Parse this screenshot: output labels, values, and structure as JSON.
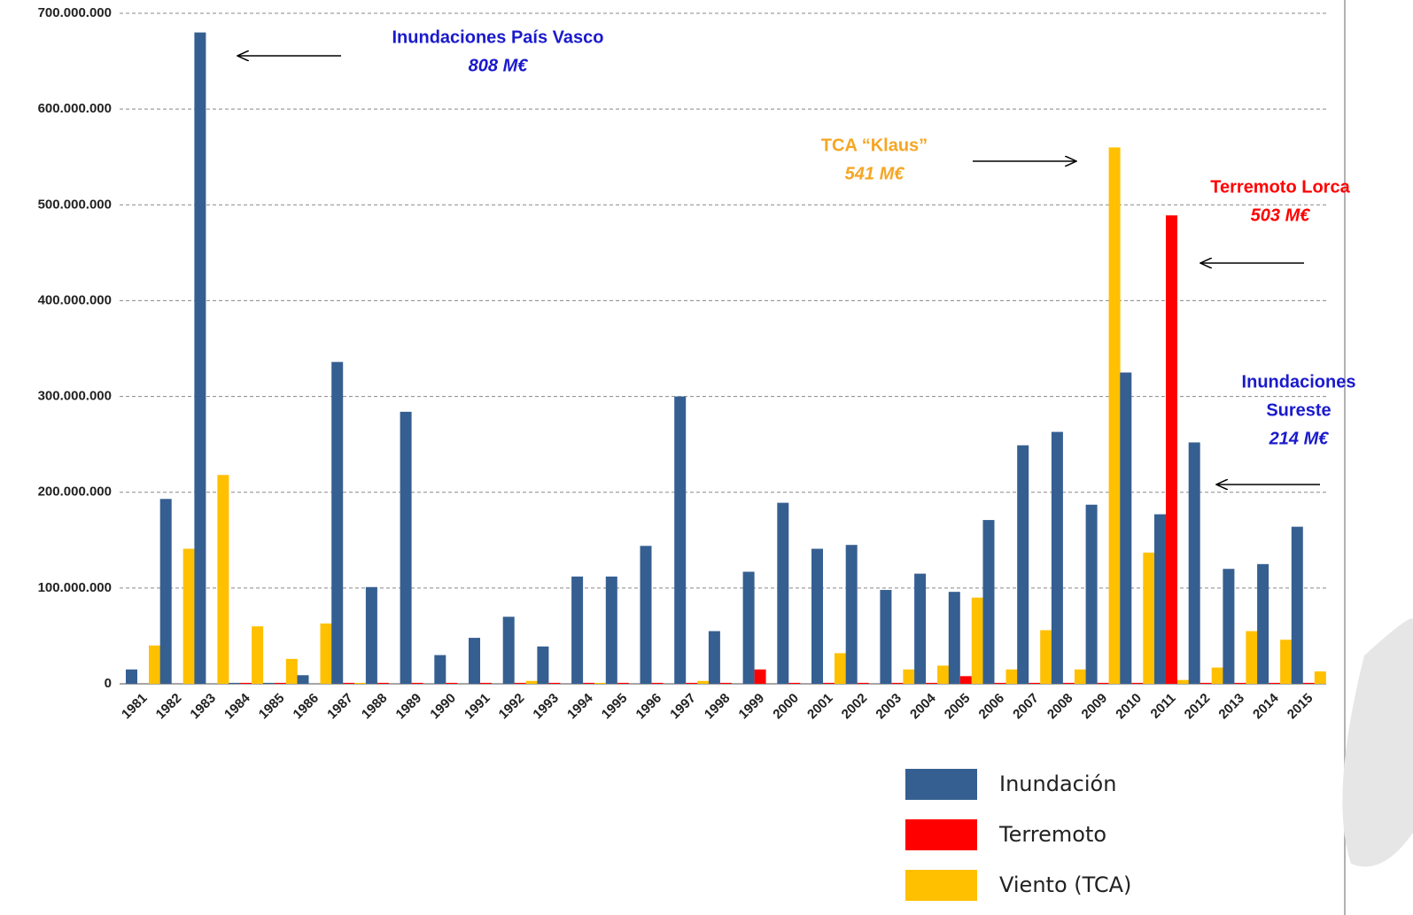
{
  "chart_data": {
    "type": "bar",
    "categories": [
      "1981",
      "1982",
      "1983",
      "1984",
      "1985",
      "1986",
      "1987",
      "1988",
      "1989",
      "1990",
      "1991",
      "1992",
      "1993",
      "1994",
      "1995",
      "1996",
      "1997",
      "1998",
      "1999",
      "2000",
      "2001",
      "2002",
      "2003",
      "2004",
      "2005",
      "2006",
      "2007",
      "2008",
      "2009",
      "2010",
      "2011",
      "2012",
      "2013",
      "2014",
      "2015"
    ],
    "series": [
      {
        "name": "Inundación",
        "color": "#365f91",
        "values": [
          15000000,
          193000000,
          680000000,
          1000000,
          1000000,
          9000000,
          336000000,
          101000000,
          284000000,
          30000000,
          48000000,
          70000000,
          39000000,
          112000000,
          112000000,
          144000000,
          300000000,
          55000000,
          117000000,
          189000000,
          141000000,
          145000000,
          98000000,
          115000000,
          96000000,
          171000000,
          249000000,
          263000000,
          187000000,
          325000000,
          177000000,
          252000000,
          120000000,
          125000000,
          164000000
        ]
      },
      {
        "name": "Terremoto",
        "color": "#ff0000",
        "values": [
          0,
          0,
          0,
          1000000,
          1000000,
          0,
          1000000,
          1000000,
          1000000,
          1000000,
          1000000,
          1000000,
          1000000,
          1000000,
          1000000,
          1000000,
          1000000,
          1000000,
          15000000,
          1000000,
          1000000,
          1000000,
          1000000,
          1000000,
          8000000,
          1000000,
          1000000,
          1000000,
          1000000,
          1000000,
          489000000,
          1000000,
          1000000,
          1000000,
          1000000
        ]
      },
      {
        "name": "Viento (TCA)",
        "color": "#ffc000",
        "values": [
          40000000,
          141000000,
          218000000,
          60000000,
          26000000,
          63000000,
          1000000,
          0,
          0,
          0,
          0,
          3000000,
          0,
          1000000,
          0,
          0,
          3000000,
          0,
          0,
          0,
          32000000,
          0,
          15000000,
          19000000,
          90000000,
          15000000,
          56000000,
          15000000,
          560000000,
          137000000,
          4000000,
          17000000,
          55000000,
          46000000,
          13000000
        ]
      }
    ],
    "ylim": [
      0,
      700000000
    ],
    "yticks": [
      0,
      {
        "value": 100000000,
        "label": "100.000.000"
      },
      {
        "value": 200000000,
        "label": "200.000.000"
      },
      {
        "value": 300000000,
        "label": "300.000.000"
      },
      {
        "value": 400000000,
        "label": "400.000.000"
      },
      {
        "value": 500000000,
        "label": "500.000.000"
      },
      {
        "value": 600000000,
        "label": "600.000.000"
      },
      {
        "value": 700000000,
        "label": "700.000.000"
      }
    ],
    "grid": true,
    "annotations": [
      {
        "lines": [
          "Inundaciones País Vasco",
          "808 M€"
        ],
        "color": "#1a1acc"
      },
      {
        "lines": [
          "TCA “Klaus”",
          "541 M€"
        ],
        "color": "#f5a623"
      },
      {
        "lines": [
          "Terremoto Lorca",
          "503 M€"
        ],
        "color": "#ff0000"
      },
      {
        "lines": [
          "Inundaciones",
          "Sureste",
          "214 M€"
        ],
        "color": "#1a1acc"
      }
    ]
  }
}
